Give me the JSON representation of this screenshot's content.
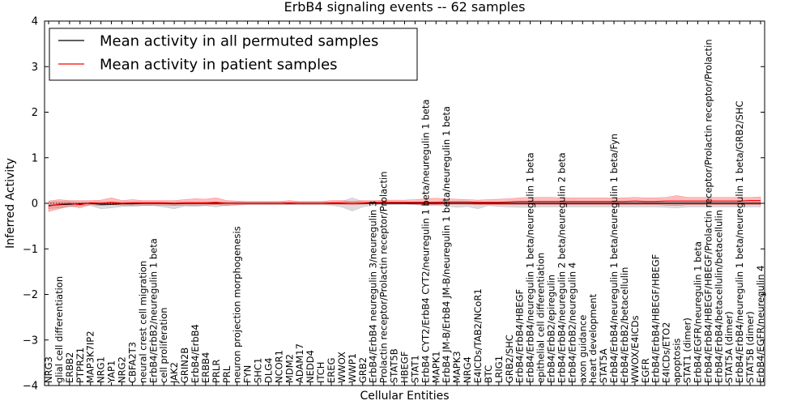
{
  "chart_data": {
    "type": "line",
    "title": "ErbB4 signaling events -- 62 samples",
    "xlabel": "Cellular Entities",
    "ylabel": "Inferred Activity",
    "ylim": [
      -4,
      4
    ],
    "yticks": [
      "4",
      "3",
      "2",
      "1",
      "0",
      "−1",
      "−2",
      "−3",
      "−4"
    ],
    "legend_position": "top-left",
    "grid": false,
    "categories": [
      "NRG3",
      "glial cell differentiation",
      "ERBB2",
      "PTPRZ1",
      "MAP3K7IP2",
      "NRG1",
      "YAP1",
      "NRG2",
      "CBFA2T3",
      "neural crest cell migration",
      "ErbB4/ErbB2/neuregulin 1 beta",
      "cell proliferation",
      "JAK2",
      "GRIN2B",
      "ErbB4/ErbB4",
      "ERBB4",
      "PRLR",
      "PRL",
      "neuron projection morphogenesis",
      "FYN",
      "SHC1",
      "DLG4",
      "NCOR1",
      "MDM2",
      "ADAM17",
      "NEDD4",
      "ITCH",
      "EREG",
      "WWOX",
      "WWP1",
      "GRB2",
      "ErbB4/ErbB4 neuregulin 3/neuregulin 3",
      "Prolactin receptor/Prolactin receptor/Prolactin",
      "STAT5B",
      "HBEGF",
      "STAT1",
      "ErbB4 CYT2/ErbB4 CYT2/neuregulin 1 beta/neuregulin 1 beta",
      "MAPK1",
      "ErbB4 JM-B/ErbB4 JM-B/neuregulin 1 beta/neuregulin 1 beta",
      "MAPK3",
      "NRG4",
      "E4ICDs/TAB2/NCoR1",
      "BTC",
      "LRIG1",
      "GRB2/SHC",
      "ErbB4/ErbB4/HBEGF",
      "ErbB4/ErbB4/neuregulin 1 beta/neuregulin 1 beta",
      "epithelial cell differentiation",
      "ErbB4/ErbB2/epiregulin",
      "ErbB4/ErbB4/neuregulin 2 beta/neuregulin 2 beta",
      "ErbB4/ErbB2/neuregulin 4",
      "axon guidance",
      "heart development",
      "STAT5A",
      "ErbB4/ErbB4/neuregulin 1 beta/neuregulin 1 beta/Fyn",
      "ErbB4/ErbB2/betacellulin",
      "WWOX/E4ICDs",
      "EGFR",
      "ErbB4/ErbB4/HBEGF/HBEGF",
      "E4ICDs/ETO2",
      "apoptosis",
      "STAT1 (dimer)",
      "ErbB4/EGFR/neuregulin 1 beta",
      "ErbB4/ErbB4/HBEGF/HBEGF/Prolactin receptor/Prolactin receptor/Prolactin",
      "ErbB4/ErbB4/betacellulin/betacellulin",
      "STAT5A (dimer)",
      "ErbB4/ErbB4/neuregulin 1 beta/neuregulin 1 beta/GRB2/SHC",
      "STAT5B (dimer)",
      "ErbB4/EGFR/neuregulin 4"
    ],
    "series": [
      {
        "name": "Mean activity in all permuted samples",
        "color": "#000000",
        "values": [
          -0.05,
          -0.03,
          -0.02,
          -0.01,
          0.0,
          -0.02,
          -0.02,
          -0.01,
          -0.01,
          0.0,
          0.0,
          0.0,
          -0.01,
          0.0,
          0.0,
          0.0,
          0.0,
          0.0,
          0.0,
          0.0,
          0.0,
          0.0,
          0.0,
          0.0,
          0.0,
          0.0,
          0.0,
          0.0,
          0.0,
          0.0,
          0.0,
          0.0,
          0.0,
          0.0,
          0.0,
          0.0,
          0.0,
          0.0,
          0.0,
          0.0,
          0.0,
          0.0,
          0.0,
          0.0,
          0.0,
          0.0,
          0.0,
          0.0,
          0.0,
          0.0,
          0.0,
          0.0,
          0.0,
          0.0,
          0.0,
          0.0,
          0.0,
          0.0,
          0.0,
          0.0,
          0.0,
          0.0,
          0.0,
          0.0,
          0.0,
          0.0,
          0.0,
          0.0,
          0.0
        ],
        "band_low": [
          -0.12,
          -0.1,
          -0.08,
          -0.05,
          -0.05,
          -0.12,
          -0.1,
          -0.07,
          -0.07,
          -0.05,
          -0.05,
          -0.08,
          -0.12,
          -0.06,
          -0.07,
          -0.05,
          -0.08,
          -0.04,
          -0.04,
          -0.03,
          -0.03,
          -0.03,
          -0.03,
          -0.03,
          -0.03,
          -0.03,
          -0.03,
          -0.04,
          -0.08,
          -0.17,
          -0.08,
          -0.04,
          -0.03,
          -0.03,
          -0.03,
          -0.03,
          -0.05,
          -0.05,
          -0.06,
          -0.09,
          -0.07,
          -0.12,
          -0.05,
          -0.07,
          -0.08,
          -0.09,
          -0.09,
          -0.08,
          -0.08,
          -0.08,
          -0.08,
          -0.08,
          -0.08,
          -0.08,
          -0.08,
          -0.08,
          -0.08,
          -0.08,
          -0.08,
          -0.09,
          -0.1,
          -0.08,
          -0.08,
          -0.08,
          -0.08,
          -0.08,
          -0.08,
          -0.08,
          -0.08
        ],
        "band_high": [
          0.03,
          0.04,
          0.04,
          0.03,
          0.03,
          0.03,
          0.03,
          0.03,
          0.03,
          0.03,
          0.03,
          0.03,
          0.03,
          0.03,
          0.03,
          0.03,
          0.03,
          0.03,
          0.03,
          0.03,
          0.03,
          0.03,
          0.03,
          0.03,
          0.03,
          0.03,
          0.03,
          0.03,
          0.04,
          0.12,
          0.04,
          0.03,
          0.03,
          0.03,
          0.03,
          0.03,
          0.03,
          0.03,
          0.03,
          0.03,
          0.03,
          0.03,
          0.03,
          0.03,
          0.03,
          0.03,
          0.03,
          0.03,
          0.03,
          0.03,
          0.03,
          0.03,
          0.03,
          0.03,
          0.03,
          0.03,
          0.03,
          0.03,
          0.03,
          0.03,
          0.03,
          0.03,
          0.03,
          0.03,
          0.03,
          0.03,
          0.03,
          0.03,
          0.03
        ]
      },
      {
        "name": "Mean activity in patient samples",
        "color": "#ff0000",
        "values": [
          -0.06,
          -0.02,
          0.0,
          -0.03,
          0.01,
          0.0,
          0.02,
          0.0,
          0.01,
          0.01,
          0.01,
          0.01,
          0.0,
          0.01,
          0.01,
          0.01,
          0.02,
          0.0,
          0.0,
          0.0,
          0.0,
          0.0,
          0.0,
          0.01,
          0.0,
          0.0,
          0.0,
          0.01,
          0.01,
          0.0,
          0.01,
          0.02,
          0.02,
          0.02,
          0.02,
          0.02,
          0.02,
          0.02,
          0.03,
          0.03,
          0.03,
          0.02,
          0.02,
          0.02,
          0.03,
          0.04,
          0.04,
          0.04,
          0.04,
          0.04,
          0.04,
          0.04,
          0.04,
          0.04,
          0.04,
          0.04,
          0.05,
          0.04,
          0.04,
          0.05,
          0.05,
          0.05,
          0.05,
          0.05,
          0.05,
          0.05,
          0.05,
          0.06,
          0.06
        ],
        "band_low": [
          -0.18,
          -0.12,
          -0.06,
          -0.1,
          -0.03,
          -0.05,
          -0.03,
          -0.04,
          -0.04,
          -0.04,
          -0.04,
          -0.04,
          -0.05,
          -0.04,
          -0.04,
          -0.04,
          -0.03,
          -0.05,
          -0.03,
          -0.02,
          -0.02,
          -0.02,
          -0.02,
          -0.02,
          -0.02,
          -0.02,
          -0.02,
          -0.02,
          -0.02,
          -0.03,
          -0.02,
          -0.01,
          -0.01,
          -0.01,
          -0.01,
          -0.02,
          -0.03,
          -0.03,
          -0.02,
          -0.02,
          -0.02,
          -0.03,
          -0.03,
          -0.03,
          -0.03,
          -0.03,
          -0.03,
          -0.03,
          -0.03,
          -0.03,
          -0.03,
          -0.03,
          -0.03,
          -0.03,
          -0.03,
          -0.03,
          -0.03,
          -0.03,
          -0.03,
          -0.04,
          -0.05,
          -0.03,
          -0.03,
          -0.03,
          -0.03,
          -0.03,
          -0.03,
          -0.03,
          -0.03
        ],
        "band_high": [
          0.05,
          0.08,
          0.06,
          0.06,
          0.06,
          0.07,
          0.12,
          0.06,
          0.08,
          0.06,
          0.06,
          0.06,
          0.06,
          0.08,
          0.1,
          0.09,
          0.12,
          0.06,
          0.05,
          0.04,
          0.04,
          0.04,
          0.04,
          0.06,
          0.04,
          0.04,
          0.04,
          0.06,
          0.06,
          0.04,
          0.06,
          0.06,
          0.07,
          0.07,
          0.07,
          0.08,
          0.1,
          0.11,
          0.1,
          0.09,
          0.08,
          0.07,
          0.08,
          0.09,
          0.1,
          0.12,
          0.13,
          0.13,
          0.13,
          0.12,
          0.12,
          0.12,
          0.12,
          0.12,
          0.12,
          0.12,
          0.13,
          0.12,
          0.12,
          0.13,
          0.17,
          0.13,
          0.13,
          0.13,
          0.13,
          0.13,
          0.13,
          0.13,
          0.14
        ]
      }
    ]
  }
}
